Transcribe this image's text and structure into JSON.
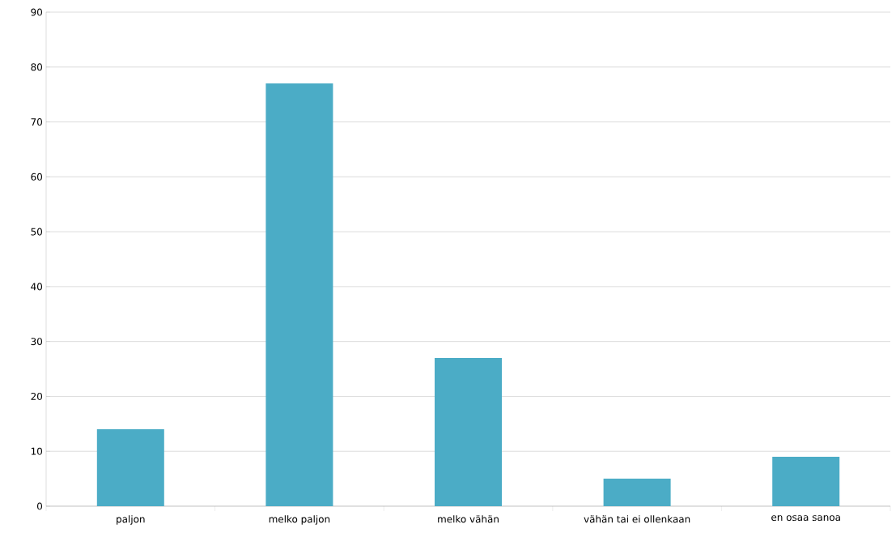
{
  "chart_data": {
    "type": "bar",
    "categories": [
      "paljon",
      "melko paljon",
      "melko vähän",
      "vähän tai ei ollenkaan",
      "en osaa sanoa"
    ],
    "values": [
      14,
      77,
      27,
      5,
      9
    ],
    "color": "#4bacc6",
    "ylim": [
      0,
      90
    ],
    "yticks": [
      0,
      10,
      20,
      30,
      40,
      50,
      60,
      70,
      80,
      90
    ],
    "grid": "y"
  }
}
